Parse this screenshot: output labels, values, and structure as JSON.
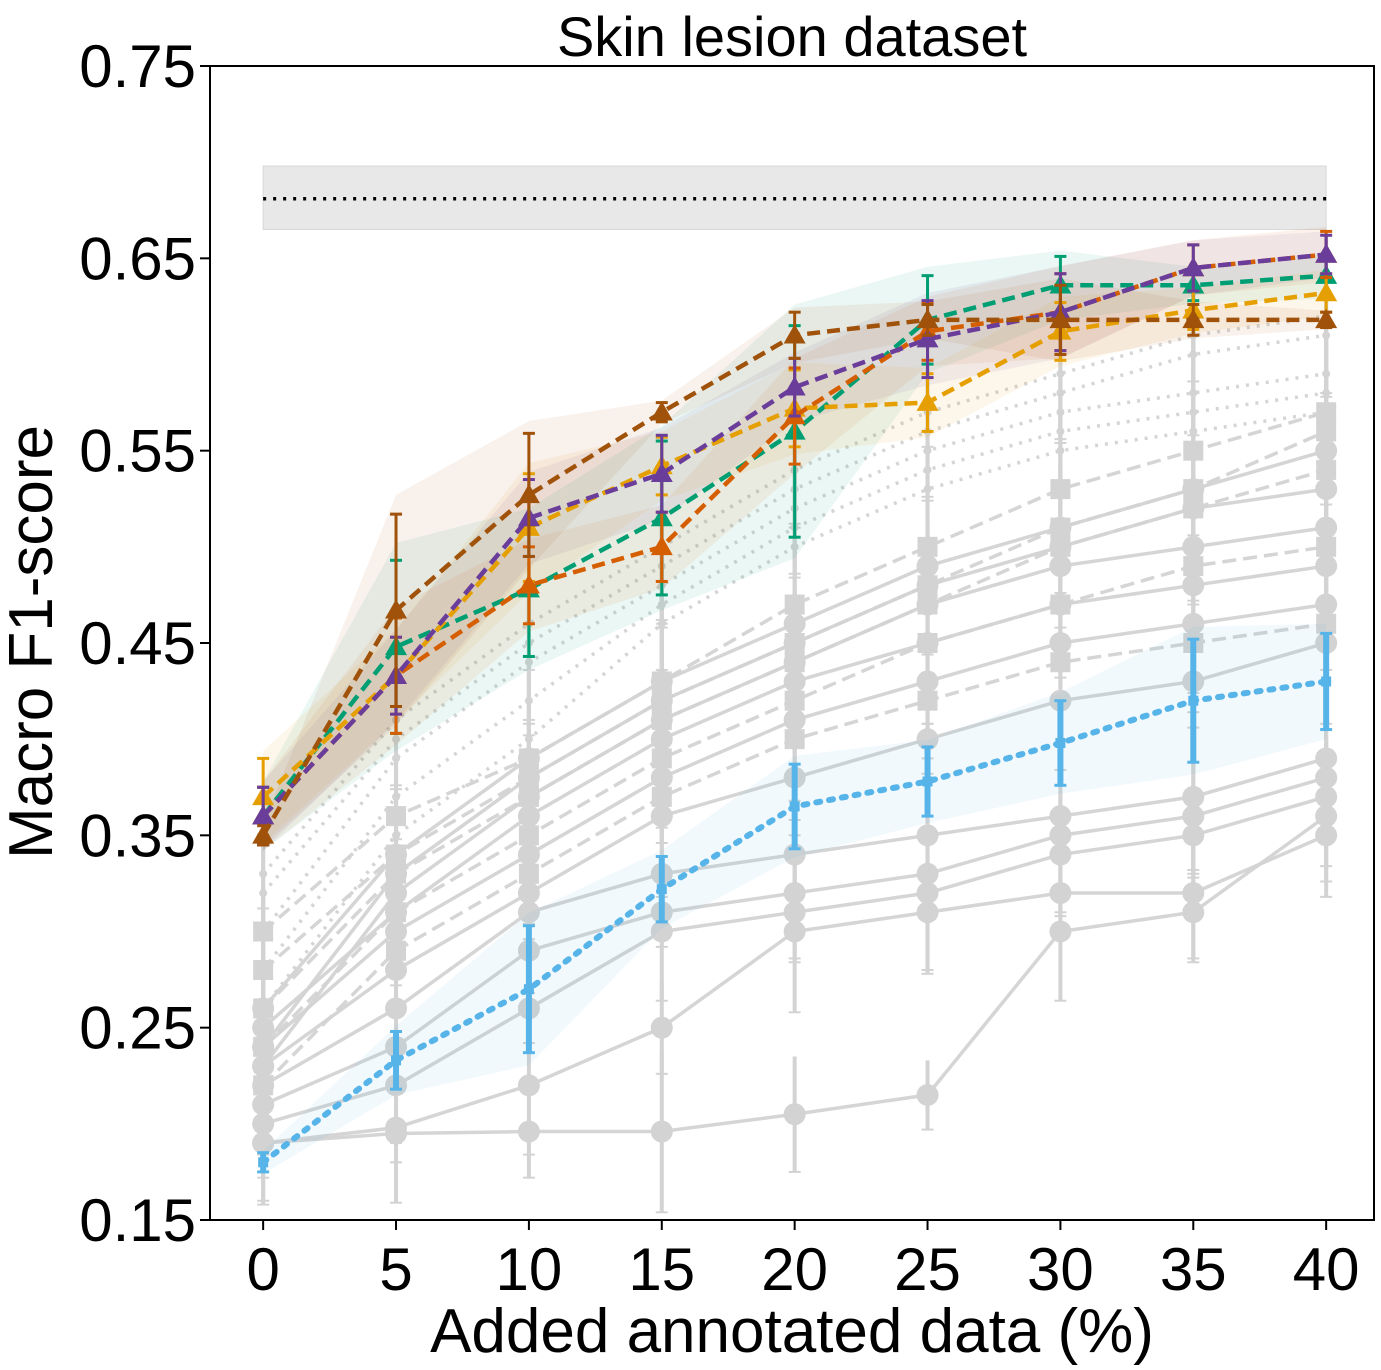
{
  "chart_data": {
    "type": "line",
    "title": "Skin lesion dataset",
    "xlabel": "Added annotated data (%)",
    "ylabel": "Macro F1-score",
    "x": [
      0,
      5,
      10,
      15,
      20,
      25,
      30,
      35,
      40
    ],
    "xlim": [
      -2,
      41.8
    ],
    "ylim": [
      0.15,
      0.75
    ],
    "xticks": [
      "0",
      "5",
      "10",
      "15",
      "20",
      "25",
      "30",
      "35",
      "40"
    ],
    "yticks": [
      "0.15",
      "0.25",
      "0.35",
      "0.45",
      "0.55",
      "0.65",
      "0.75"
    ],
    "grid": false,
    "reference": {
      "value": 0.681,
      "band": [
        0.665,
        0.698
      ],
      "style": "dotted",
      "color": "#000000",
      "band_color": "#e8e8e8"
    },
    "background_series_color": "#d3d3d3",
    "background_series": [
      {
        "style": "solid",
        "values": [
          0.19,
          0.195,
          0.196,
          0.196,
          0.205,
          0.215,
          0.3,
          0.31,
          0.36
        ]
      },
      {
        "style": "solid",
        "values": [
          0.19,
          0.198,
          0.22,
          0.25,
          0.3,
          0.31,
          0.32,
          0.32,
          0.35
        ]
      },
      {
        "style": "solid",
        "values": [
          0.2,
          0.22,
          0.26,
          0.3,
          0.31,
          0.32,
          0.34,
          0.35,
          0.37
        ]
      },
      {
        "style": "solid",
        "values": [
          0.21,
          0.24,
          0.29,
          0.31,
          0.32,
          0.33,
          0.35,
          0.36,
          0.38
        ]
      },
      {
        "style": "solid",
        "values": [
          0.22,
          0.26,
          0.31,
          0.33,
          0.34,
          0.35,
          0.36,
          0.37,
          0.39
        ]
      },
      {
        "style": "solid",
        "values": [
          0.23,
          0.28,
          0.32,
          0.36,
          0.38,
          0.4,
          0.42,
          0.43,
          0.45
        ]
      },
      {
        "style": "solid",
        "values": [
          0.24,
          0.3,
          0.34,
          0.38,
          0.41,
          0.43,
          0.45,
          0.46,
          0.47
        ]
      },
      {
        "style": "solid",
        "values": [
          0.25,
          0.31,
          0.36,
          0.4,
          0.43,
          0.45,
          0.47,
          0.48,
          0.49
        ]
      },
      {
        "style": "solid",
        "values": [
          0.23,
          0.32,
          0.37,
          0.41,
          0.44,
          0.47,
          0.49,
          0.5,
          0.51
        ]
      },
      {
        "style": "solid",
        "values": [
          0.24,
          0.33,
          0.38,
          0.42,
          0.45,
          0.48,
          0.5,
          0.52,
          0.53
        ]
      },
      {
        "style": "solid",
        "values": [
          0.26,
          0.34,
          0.39,
          0.43,
          0.46,
          0.49,
          0.51,
          0.53,
          0.55
        ]
      },
      {
        "style": "dashed",
        "values": [
          0.22,
          0.29,
          0.33,
          0.37,
          0.4,
          0.42,
          0.44,
          0.45,
          0.46
        ]
      },
      {
        "style": "dashed",
        "values": [
          0.24,
          0.31,
          0.35,
          0.39,
          0.42,
          0.45,
          0.47,
          0.49,
          0.5
        ]
      },
      {
        "style": "dashed",
        "values": [
          0.26,
          0.33,
          0.37,
          0.41,
          0.44,
          0.47,
          0.5,
          0.52,
          0.54
        ]
      },
      {
        "style": "dashed",
        "values": [
          0.28,
          0.34,
          0.38,
          0.42,
          0.45,
          0.48,
          0.51,
          0.53,
          0.56
        ]
      },
      {
        "style": "dashed",
        "values": [
          0.3,
          0.36,
          0.39,
          0.43,
          0.47,
          0.5,
          0.53,
          0.55,
          0.57
        ]
      },
      {
        "style": "dotted",
        "values": [
          0.26,
          0.35,
          0.4,
          0.46,
          0.5,
          0.53,
          0.55,
          0.56,
          0.57
        ]
      },
      {
        "style": "dotted",
        "values": [
          0.28,
          0.37,
          0.42,
          0.47,
          0.51,
          0.54,
          0.56,
          0.57,
          0.58
        ]
      },
      {
        "style": "dotted",
        "values": [
          0.3,
          0.39,
          0.44,
          0.48,
          0.52,
          0.55,
          0.57,
          0.58,
          0.59
        ]
      },
      {
        "style": "dotted",
        "values": [
          0.32,
          0.4,
          0.45,
          0.49,
          0.53,
          0.56,
          0.58,
          0.6,
          0.61
        ]
      },
      {
        "style": "dotted",
        "values": [
          0.33,
          0.41,
          0.46,
          0.5,
          0.54,
          0.57,
          0.59,
          0.61,
          0.62
        ]
      }
    ],
    "series": [
      {
        "color": "#56b4e9",
        "style": "dotted",
        "marker": "square",
        "values": [
          0.18,
          0.233,
          0.27,
          0.322,
          0.365,
          0.378,
          0.398,
          0.42,
          0.43
        ],
        "err": [
          0.005,
          0.015,
          0.033,
          0.017,
          0.022,
          0.018,
          0.022,
          0.032,
          0.025
        ]
      },
      {
        "color": "#009e73",
        "style": "dashed",
        "marker": "triangle",
        "values": [
          0.36,
          0.448,
          0.478,
          0.515,
          0.56,
          0.618,
          0.636,
          0.636,
          0.641
        ],
        "err": [
          0.015,
          0.045,
          0.035,
          0.04,
          0.055,
          0.023,
          0.015,
          0.008,
          0.01
        ]
      },
      {
        "color": "#e69f00",
        "style": "dashed",
        "marker": "triangle",
        "values": [
          0.37,
          0.433,
          0.51,
          0.542,
          0.572,
          0.575,
          0.612,
          0.623,
          0.632
        ],
        "err": [
          0.02,
          0.02,
          0.028,
          0.015,
          0.02,
          0.015,
          0.015,
          0.01,
          0.01
        ]
      },
      {
        "color": "#d55e00",
        "style": "dashed",
        "marker": "triangle",
        "values": [
          0.36,
          0.433,
          0.48,
          0.5,
          0.568,
          0.612,
          0.622,
          0.645,
          0.652
        ],
        "err": [
          0.015,
          0.03,
          0.02,
          0.018,
          0.025,
          0.015,
          0.02,
          0.012,
          0.012
        ]
      },
      {
        "color": "#6a3d9a",
        "style": "dashed",
        "marker": "triangle",
        "values": [
          0.36,
          0.433,
          0.515,
          0.538,
          0.583,
          0.608,
          0.622,
          0.645,
          0.652
        ],
        "err": [
          0.015,
          0.02,
          0.02,
          0.02,
          0.015,
          0.02,
          0.02,
          0.012,
          0.01
        ]
      },
      {
        "color": "#a0520a",
        "style": "dashed",
        "marker": "triangle",
        "values": [
          0.35,
          0.467,
          0.527,
          0.57,
          0.61,
          0.618,
          0.618,
          0.618,
          0.618
        ],
        "err": [
          0.005,
          0.05,
          0.032,
          0.005,
          0.012,
          0.008,
          0.018,
          0.008,
          0.004
        ]
      }
    ]
  }
}
